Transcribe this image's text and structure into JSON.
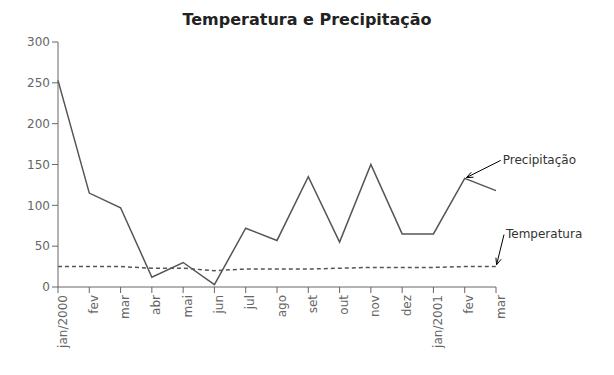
{
  "chart_data": {
    "type": "line",
    "title": "Temperatura e Precipitação",
    "categories": [
      "jan/2000",
      "fev",
      "mar",
      "abr",
      "mai",
      "jun",
      "jul",
      "ago",
      "set",
      "out",
      "nov",
      "dez",
      "jan/2001",
      "fev",
      "mar"
    ],
    "series": [
      {
        "name": "Precipitação",
        "color": "#555555",
        "line_style": "solid",
        "values": [
          253,
          115,
          97,
          12,
          30,
          3,
          72,
          57,
          135,
          55,
          150,
          65,
          65,
          133,
          118
        ]
      },
      {
        "name": "Temperatura",
        "color": "#555555",
        "line_style": "dashed",
        "values": [
          25,
          25,
          25,
          23,
          23,
          20,
          22,
          22,
          22,
          23,
          24,
          24,
          24,
          25,
          25
        ]
      }
    ],
    "ylim": [
      0,
      300
    ],
    "yticks": [
      0,
      50,
      100,
      150,
      200,
      250,
      300
    ],
    "grid": false
  }
}
